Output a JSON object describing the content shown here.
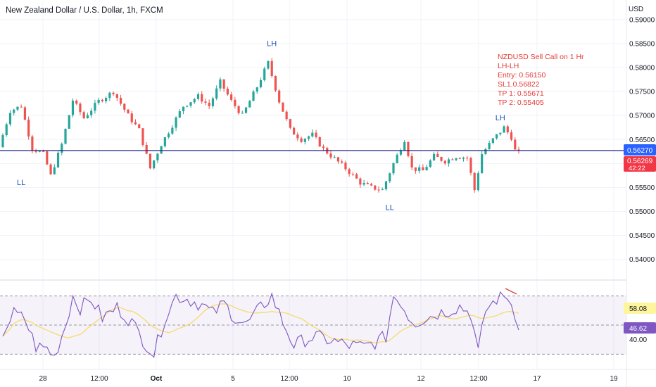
{
  "header": {
    "title": "New Zealand Dollar / U.S. Dollar, 1h, FXCM",
    "currency": "USD"
  },
  "annotation": {
    "lines": [
      "NZDUSD Sell Call  on 1 Hr",
      "LH-LH",
      "Entry: 0.56150",
      "SL1.0.56822",
      "TP 1: 0.55671",
      "TP 2:  0.55405"
    ],
    "color": "#e53935"
  },
  "price_badges": {
    "line_value": "0.56270",
    "last_value": "0.56269",
    "countdown": "42:22"
  },
  "rsi_badges": {
    "ma_value": "58.08",
    "rsi_value": "46.62"
  },
  "colors": {
    "up": "#26a69a",
    "down": "#ef5350",
    "line": "#1a237e",
    "rsi": "#7e57c2",
    "rsi_ma": "#f5dc6e",
    "label": "#1e53b8"
  },
  "chart_data": [
    {
      "type": "candlestick",
      "title": "New Zealand Dollar / U.S. Dollar, 1h, FXCM",
      "ylim": [
        0.536,
        0.5935
      ],
      "y_ticks": [
        "0.54000",
        "0.54500",
        "0.55000",
        "0.55500",
        "0.56000",
        "0.56500",
        "0.57000",
        "0.57500",
        "0.58000",
        "0.58500",
        "0.59000"
      ],
      "x_ticks": [
        "28",
        "12:00",
        "Oct",
        "5",
        "12:00",
        "10",
        "12",
        "12:00",
        "17",
        "19"
      ],
      "grid": true,
      "horizontal_line": 0.5627,
      "labels": [
        {
          "text": "LL",
          "x": 5,
          "y": 0.5555
        },
        {
          "text": "LH",
          "x": 73,
          "y": 0.5845
        },
        {
          "text": "LL",
          "x": 105,
          "y": 0.5503
        },
        {
          "text": "LH",
          "x": 135,
          "y": 0.569
        }
      ],
      "anchors": [
        [
          0,
          0.5634
        ],
        [
          3,
          0.571
        ],
        [
          6,
          0.572
        ],
        [
          9,
          0.5632
        ],
        [
          12,
          0.562
        ],
        [
          14,
          0.5575
        ],
        [
          17,
          0.564
        ],
        [
          20,
          0.5732
        ],
        [
          23,
          0.5695
        ],
        [
          27,
          0.573
        ],
        [
          31,
          0.575
        ],
        [
          35,
          0.57
        ],
        [
          38,
          0.567
        ],
        [
          41,
          0.559
        ],
        [
          44,
          0.564
        ],
        [
          47,
          0.568
        ],
        [
          50,
          0.572
        ],
        [
          54,
          0.574
        ],
        [
          57,
          0.572
        ],
        [
          60,
          0.577
        ],
        [
          63,
          0.573
        ],
        [
          66,
          0.57
        ],
        [
          70,
          0.576
        ],
        [
          73,
          0.581
        ],
        [
          76,
          0.573
        ],
        [
          79,
          0.567
        ],
        [
          82,
          0.565
        ],
        [
          85,
          0.566
        ],
        [
          88,
          0.563
        ],
        [
          91,
          0.561
        ],
        [
          94,
          0.559
        ],
        [
          98,
          0.556
        ],
        [
          101,
          0.555
        ],
        [
          104,
          0.5545
        ],
        [
          107,
          0.56
        ],
        [
          110,
          0.565
        ],
        [
          112,
          0.559
        ],
        [
          115,
          0.5585
        ],
        [
          118,
          0.5615
        ],
        [
          121,
          0.5605
        ],
        [
          124,
          0.5615
        ],
        [
          127,
          0.5612
        ],
        [
          129,
          0.5545
        ],
        [
          131,
          0.562
        ],
        [
          134,
          0.565
        ],
        [
          137,
          0.5675
        ],
        [
          139,
          0.5655
        ],
        [
          140,
          0.5627
        ]
      ],
      "n_candles": 141
    },
    {
      "type": "line",
      "name": "RSI",
      "ylim": [
        20,
        80
      ],
      "y_ticks": [
        "40.00"
      ],
      "bands": [
        30,
        50,
        70
      ],
      "series": [
        {
          "name": "RSI",
          "color": "#7e57c2",
          "current": 46.62
        },
        {
          "name": "MA",
          "color": "#f5dc6e",
          "current": 58.08
        }
      ],
      "anchors": [
        [
          0,
          45
        ],
        [
          3,
          58
        ],
        [
          6,
          54
        ],
        [
          9,
          35
        ],
        [
          12,
          34
        ],
        [
          14,
          28
        ],
        [
          17,
          50
        ],
        [
          19,
          70
        ],
        [
          21,
          62
        ],
        [
          24,
          68
        ],
        [
          27,
          55
        ],
        [
          31,
          62
        ],
        [
          35,
          52
        ],
        [
          38,
          40
        ],
        [
          41,
          30
        ],
        [
          44,
          55
        ],
        [
          47,
          70
        ],
        [
          50,
          68
        ],
        [
          54,
          64
        ],
        [
          57,
          58
        ],
        [
          60,
          65
        ],
        [
          63,
          55
        ],
        [
          66,
          50
        ],
        [
          70,
          62
        ],
        [
          73,
          70
        ],
        [
          76,
          52
        ],
        [
          79,
          36
        ],
        [
          82,
          40
        ],
        [
          85,
          42
        ],
        [
          88,
          40
        ],
        [
          91,
          38
        ],
        [
          94,
          36
        ],
        [
          98,
          35
        ],
        [
          101,
          38
        ],
        [
          104,
          42
        ],
        [
          106,
          70
        ],
        [
          108,
          66
        ],
        [
          110,
          56
        ],
        [
          112,
          52
        ],
        [
          115,
          55
        ],
        [
          118,
          58
        ],
        [
          121,
          60
        ],
        [
          124,
          63
        ],
        [
          127,
          58
        ],
        [
          129,
          31
        ],
        [
          131,
          60
        ],
        [
          134,
          68
        ],
        [
          137,
          70
        ],
        [
          139,
          58
        ],
        [
          140,
          47
        ]
      ]
    }
  ]
}
